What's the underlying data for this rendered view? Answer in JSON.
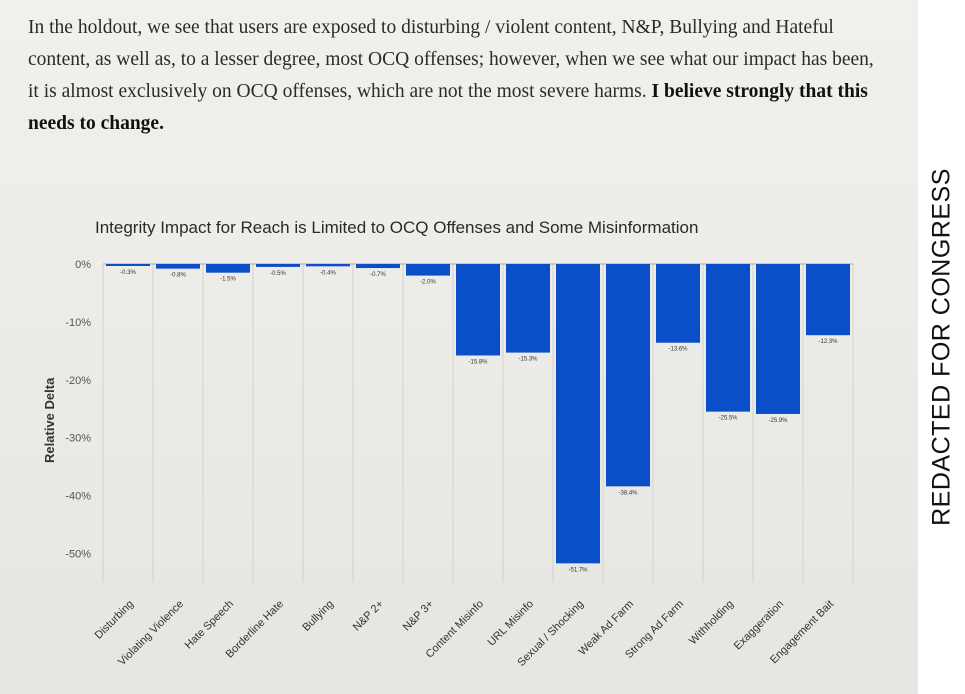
{
  "paragraph": {
    "text": "In the holdout, we see that users are exposed to disturbing / violent content, N&P, Bullying and Hateful content, as well as, to a lesser degree, most OCQ offenses; however, when we see what our impact has been, it is almost exclusively on OCQ offenses, which are not the most severe harms.",
    "bold_text": "I believe strongly that this needs to change."
  },
  "chart_data": {
    "type": "bar",
    "title": "Integrity Impact for Reach is Limited to OCQ Offenses and Some Misinformation",
    "xlabel": "",
    "ylabel": "Relative Delta",
    "ylim": [
      -55,
      0
    ],
    "yticks": [
      0,
      -10,
      -20,
      -30,
      -40,
      -50
    ],
    "ytick_labels": [
      "0%",
      "-10%",
      "-20%",
      "-30%",
      "-40%",
      "-50%"
    ],
    "categories": [
      "Disturbing",
      "Violating Violence",
      "Hate Speech",
      "Borderline Hate",
      "Bullying",
      "N&P 2+",
      "N&P 3+",
      "Content Misinfo",
      "URL Misinfo",
      "Sexual / Shocking",
      "Weak Ad Farm",
      "Strong Ad Farm",
      "Withholding",
      "Exaggeration",
      "Engagement Bait"
    ],
    "values": [
      -0.3,
      -0.8,
      -1.5,
      -0.5,
      -0.4,
      -0.7,
      -2.0,
      -15.8,
      -15.3,
      -51.7,
      -38.4,
      -13.6,
      -25.5,
      -25.9,
      -12.3
    ],
    "data_labels": [
      "-0.3%",
      "-0.8%",
      "-1.5%",
      "-0.5%",
      "-0.4%",
      "-0.7%",
      "-2.0%",
      "-15.8%",
      "-15.3%",
      "-51.7%",
      "-38.4%",
      "-13.6%",
      "-25.5%",
      "-25.9%",
      "-12.3%"
    ],
    "bar_color": "#0a4fc7",
    "grid": "vertical",
    "legend": "none"
  },
  "side_label": "REDACTED FOR CONGRESS"
}
